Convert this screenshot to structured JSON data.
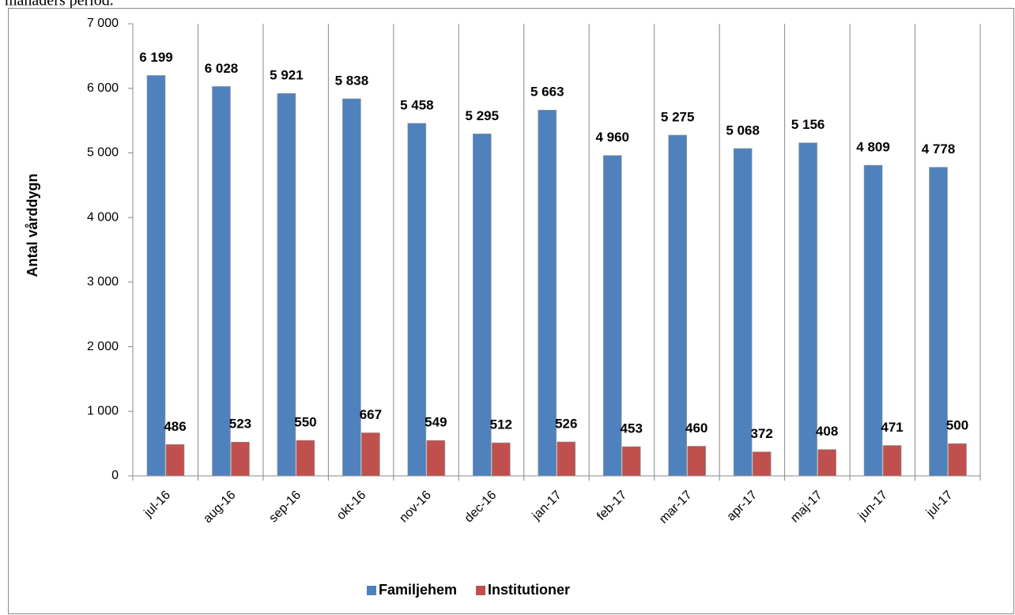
{
  "preceding_text": "månaders period.",
  "chart_data": {
    "type": "bar",
    "y_axis_label": "Antal vårddygn",
    "categories": [
      "jul-16",
      "aug-16",
      "sep-16",
      "okt-16",
      "nov-16",
      "dec-16",
      "jan-17",
      "feb-17",
      "mar-17",
      "apr-17",
      "maj-17",
      "jun-17",
      "jul-17"
    ],
    "series": [
      {
        "name": "Familjehem",
        "color": "#4f81bd",
        "values": [
          6199,
          6028,
          5921,
          5838,
          5458,
          5295,
          5663,
          4960,
          5275,
          5068,
          5156,
          4809,
          4778
        ],
        "value_labels": [
          "6 199",
          "6 028",
          "5 921",
          "5 838",
          "5 458",
          "5 295",
          "5 663",
          "4 960",
          "5 275",
          "5 068",
          "5 156",
          "4 809",
          "4 778"
        ]
      },
      {
        "name": "Institutioner",
        "color": "#c0504d",
        "values": [
          486,
          523,
          550,
          667,
          549,
          512,
          526,
          453,
          460,
          372,
          408,
          471,
          500
        ]
      }
    ],
    "ylim": [
      0,
      7000
    ],
    "yticks": [
      0,
      {
        "value": 1000,
        "label": "1 000"
      },
      {
        "value": 2000,
        "label": "2 000"
      },
      {
        "value": 3000,
        "label": "3 000"
      },
      {
        "value": 4000,
        "label": "4 000"
      },
      {
        "value": 5000,
        "label": "5 000"
      },
      {
        "value": 6000,
        "label": "6 000"
      },
      {
        "value": 7000,
        "label": "7 000"
      }
    ],
    "legend": "bottom"
  }
}
